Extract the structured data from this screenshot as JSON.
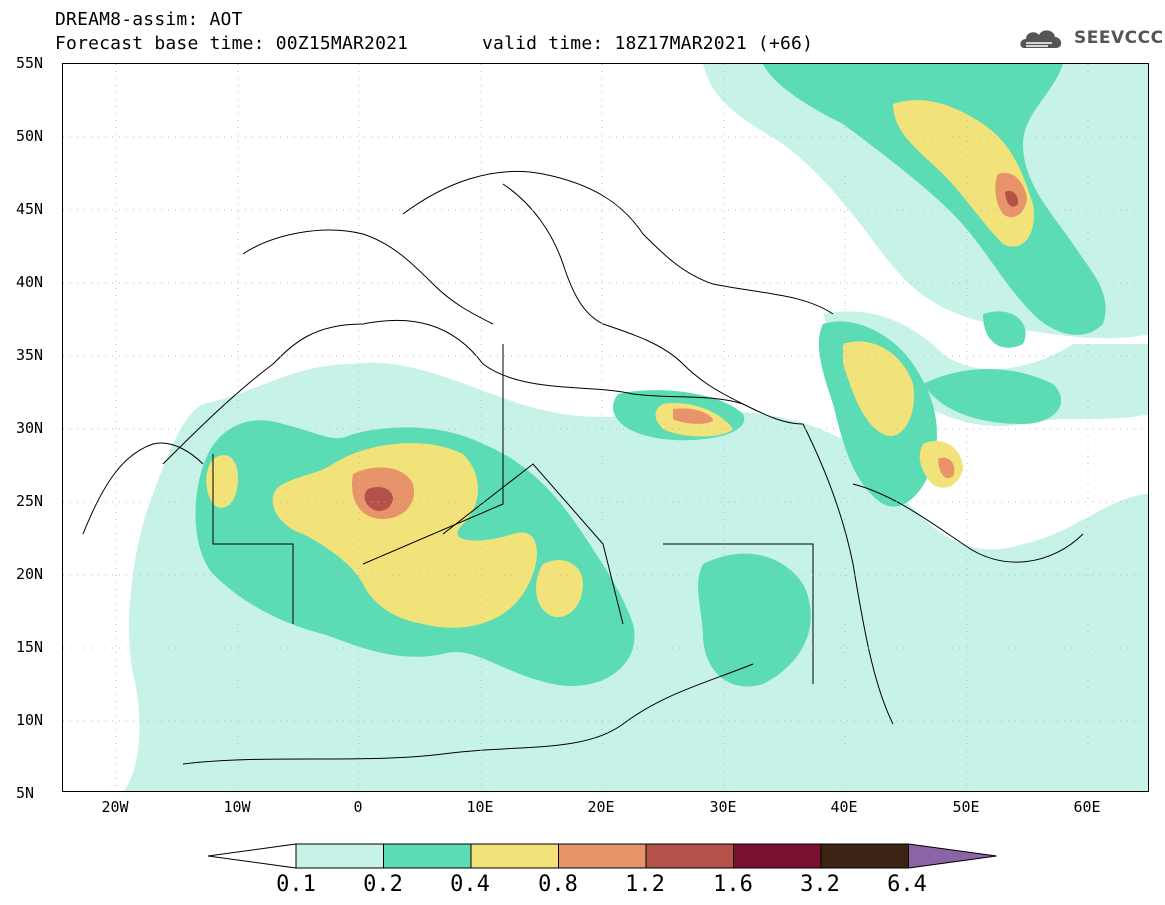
{
  "header": {
    "line1": "DREAM8-assim: AOT",
    "line2": "Forecast base time: 00Z15MAR2021",
    "line3": "valid time: 18Z17MAR2021 (+66)"
  },
  "logo": {
    "text": "SEEVCCC",
    "icon": "cloud-icon"
  },
  "map": {
    "lat_labels": [
      "55N",
      "50N",
      "45N",
      "40N",
      "35N",
      "30N",
      "25N",
      "20N",
      "15N",
      "10N",
      "5N"
    ],
    "lon_labels": [
      "20W",
      "10W",
      "0",
      "10E",
      "20E",
      "30E",
      "40E",
      "50E",
      "60E"
    ],
    "variable": "AOT"
  },
  "colorbar": {
    "labels": [
      "0.1",
      "0.2",
      "0.4",
      "0.8",
      "1.2",
      "1.6",
      "3.2",
      "6.4"
    ],
    "colors": [
      "#ffffff",
      "#c6f2e8",
      "#5cdcb4",
      "#f2e27a",
      "#e8946a",
      "#b4524a",
      "#7a1030",
      "#3c2414",
      "#8a64a4"
    ]
  }
}
